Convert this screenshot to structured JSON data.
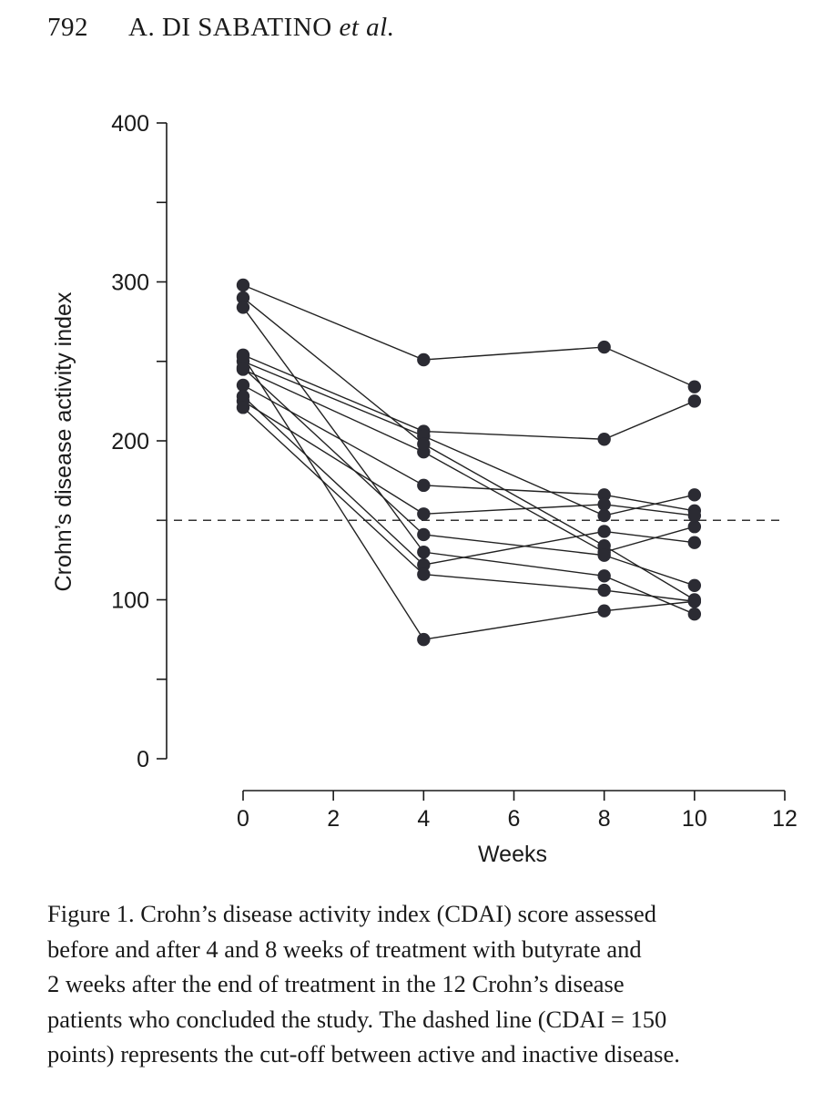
{
  "header": {
    "page_number": "792",
    "authors": "A. DI SABATINO",
    "et_al": "et al."
  },
  "chart_data": {
    "type": "line",
    "xlabel": "Weeks",
    "ylabel": "Crohn’s disease activity index",
    "xlim": [
      0,
      12
    ],
    "ylim": [
      0,
      400
    ],
    "x_ticks": [
      0,
      2,
      4,
      6,
      8,
      10,
      12
    ],
    "y_ticks_labeled": [
      0,
      100,
      200,
      300,
      400
    ],
    "y_ticks_minor": [
      50,
      150,
      250,
      350
    ],
    "x_tick_labels": [
      "0",
      "2",
      "4",
      "6",
      "8",
      "10",
      "12"
    ],
    "y_tick_labels": [
      "0",
      "100",
      "200",
      "300",
      "400"
    ],
    "reference_line": {
      "y": 150,
      "style": "dashed"
    },
    "marker_color": "#2b2b33",
    "line_color": "#222222",
    "x": [
      0,
      4,
      8,
      10
    ],
    "series": [
      {
        "values": [
          298,
          251,
          259,
          234
        ]
      },
      {
        "values": [
          254,
          206,
          201,
          225
        ]
      },
      {
        "values": [
          250,
          203,
          153,
          166
        ]
      },
      {
        "values": [
          245,
          193,
          130,
          146
        ]
      },
      {
        "values": [
          290,
          198,
          134,
          100
        ]
      },
      {
        "values": [
          284,
          130,
          115,
          91
        ]
      },
      {
        "values": [
          235,
          172,
          166,
          156
        ]
      },
      {
        "values": [
          225,
          154,
          160,
          153
        ]
      },
      {
        "values": [
          246,
          141,
          128,
          109
        ]
      },
      {
        "values": [
          228,
          122,
          143,
          136
        ]
      },
      {
        "values": [
          221,
          116,
          106,
          99
        ]
      },
      {
        "values": [
          253,
          75,
          93,
          99
        ]
      }
    ]
  },
  "caption": {
    "lines": [
      "Figure 1. Crohn’s disease activity index (CDAI) score assessed",
      "before and after 4 and 8 weeks of treatment with butyrate and",
      "2 weeks after the end of treatment in the 12 Crohn’s disease",
      "patients who concluded the study. The dashed line (CDAI = 150",
      "points) represents the cut-off between active and inactive disease."
    ]
  }
}
